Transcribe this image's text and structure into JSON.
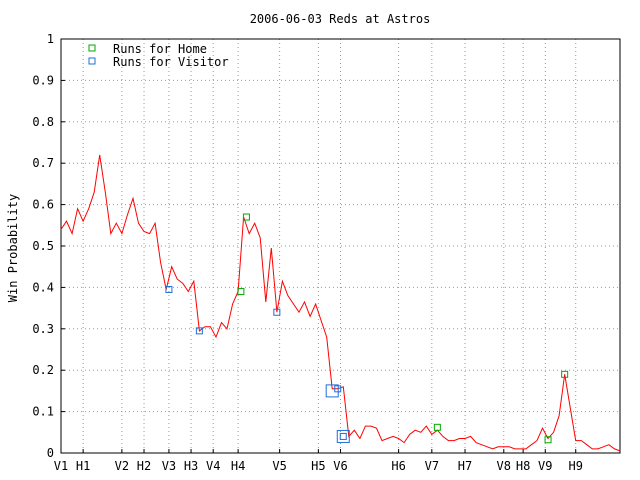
{
  "chart_data": {
    "type": "line",
    "title": "2006-06-03 Reds at Astros",
    "ylabel": "Win Probability",
    "xlabel": "",
    "ylim": [
      0,
      1
    ],
    "yticks": [
      "0",
      "0.1",
      "0.2",
      "0.3",
      "0.4",
      "0.5",
      "0.6",
      "0.7",
      "0.8",
      "0.9",
      "1"
    ],
    "xlim": [
      0,
      101
    ],
    "xticks": [
      {
        "label": "V1",
        "x": 0
      },
      {
        "label": "H1",
        "x": 4
      },
      {
        "label": "V2",
        "x": 11
      },
      {
        "label": "H2",
        "x": 15
      },
      {
        "label": "V3",
        "x": 19.5
      },
      {
        "label": "H3",
        "x": 23.5
      },
      {
        "label": "V4",
        "x": 27.5
      },
      {
        "label": "H4",
        "x": 32
      },
      {
        "label": "V5",
        "x": 39.5
      },
      {
        "label": "H5",
        "x": 46.5
      },
      {
        "label": "V6",
        "x": 50.5
      },
      {
        "label": "H6",
        "x": 61
      },
      {
        "label": "V7",
        "x": 67
      },
      {
        "label": "H7",
        "x": 73
      },
      {
        "label": "V8",
        "x": 80
      },
      {
        "label": "H8",
        "x": 83.5
      },
      {
        "label": "V9",
        "x": 87.5
      },
      {
        "label": "H9",
        "x": 93
      }
    ],
    "grid": true,
    "legend_position": "top-left",
    "line_color": "#ff0000",
    "series": [
      {
        "x": [
          0,
          1,
          2,
          3,
          4,
          5,
          6,
          7,
          8,
          9,
          10,
          11,
          12,
          13,
          14,
          15,
          16,
          17,
          18,
          19,
          20,
          21,
          22,
          23,
          24,
          25,
          26,
          27,
          28,
          29,
          30,
          31,
          32,
          33,
          34,
          35,
          36,
          37,
          38,
          39,
          40,
          41,
          42,
          43,
          44,
          45,
          46,
          47,
          48,
          49,
          50,
          51,
          52,
          53,
          54,
          55,
          56,
          57,
          58,
          59,
          60,
          61,
          62,
          63,
          64,
          65,
          66,
          67,
          68,
          69,
          70,
          71,
          72,
          73,
          74,
          75,
          76,
          77,
          78,
          79,
          80,
          81,
          82,
          83,
          84,
          85,
          86,
          87,
          88,
          89,
          90,
          91,
          92,
          93,
          94,
          95,
          96,
          97,
          98,
          99,
          100,
          101
        ],
        "values": [
          0.54,
          0.56,
          0.53,
          0.59,
          0.56,
          0.59,
          0.63,
          0.72,
          0.63,
          0.53,
          0.555,
          0.53,
          0.575,
          0.615,
          0.555,
          0.535,
          0.53,
          0.555,
          0.46,
          0.395,
          0.45,
          0.42,
          0.41,
          0.39,
          0.415,
          0.295,
          0.305,
          0.305,
          0.28,
          0.315,
          0.3,
          0.36,
          0.39,
          0.57,
          0.53,
          0.555,
          0.52,
          0.365,
          0.495,
          0.34,
          0.415,
          0.38,
          0.36,
          0.34,
          0.365,
          0.33,
          0.36,
          0.32,
          0.28,
          0.155,
          0.155,
          0.16,
          0.04,
          0.055,
          0.035,
          0.065,
          0.065,
          0.06,
          0.03,
          0.035,
          0.04,
          0.035,
          0.025,
          0.045,
          0.055,
          0.05,
          0.065,
          0.045,
          0.055,
          0.04,
          0.03,
          0.03,
          0.035,
          0.035,
          0.04,
          0.025,
          0.02,
          0.015,
          0.01,
          0.015,
          0.015,
          0.015,
          0.01,
          0.01,
          0.01,
          0.02,
          0.03,
          0.06,
          0.035,
          0.05,
          0.09,
          0.19,
          0.11,
          0.03,
          0.03,
          0.02,
          0.01,
          0.01,
          0.015,
          0.02,
          0.01,
          0.005
        ]
      }
    ],
    "markers": [
      {
        "series": "Runs for Home",
        "x": 32.5,
        "y": 0.39,
        "size": "small"
      },
      {
        "series": "Runs for Home",
        "x": 33.5,
        "y": 0.57,
        "size": "small"
      },
      {
        "series": "Runs for Home",
        "x": 68,
        "y": 0.062,
        "size": "small"
      },
      {
        "series": "Runs for Home",
        "x": 88,
        "y": 0.032,
        "size": "small"
      },
      {
        "series": "Runs for Home",
        "x": 91,
        "y": 0.19,
        "size": "small"
      },
      {
        "series": "Runs for Visitor",
        "x": 19.5,
        "y": 0.395,
        "size": "small"
      },
      {
        "series": "Runs for Visitor",
        "x": 25,
        "y": 0.295,
        "size": "small"
      },
      {
        "series": "Runs for Visitor",
        "x": 39,
        "y": 0.34,
        "size": "small"
      },
      {
        "series": "Runs for Visitor",
        "x": 49,
        "y": 0.15,
        "size": "large"
      },
      {
        "series": "Runs for Visitor",
        "x": 50,
        "y": 0.155,
        "size": "small"
      },
      {
        "series": "Runs for Visitor",
        "x": 51,
        "y": 0.04,
        "size": "large"
      },
      {
        "series": "Runs for Visitor",
        "x": 51,
        "y": 0.04,
        "size": "small"
      }
    ],
    "legend": [
      {
        "label": "Runs for Home",
        "color": "#00aa00"
      },
      {
        "label": "Runs for Visitor",
        "color": "#1e6fd8"
      }
    ]
  }
}
